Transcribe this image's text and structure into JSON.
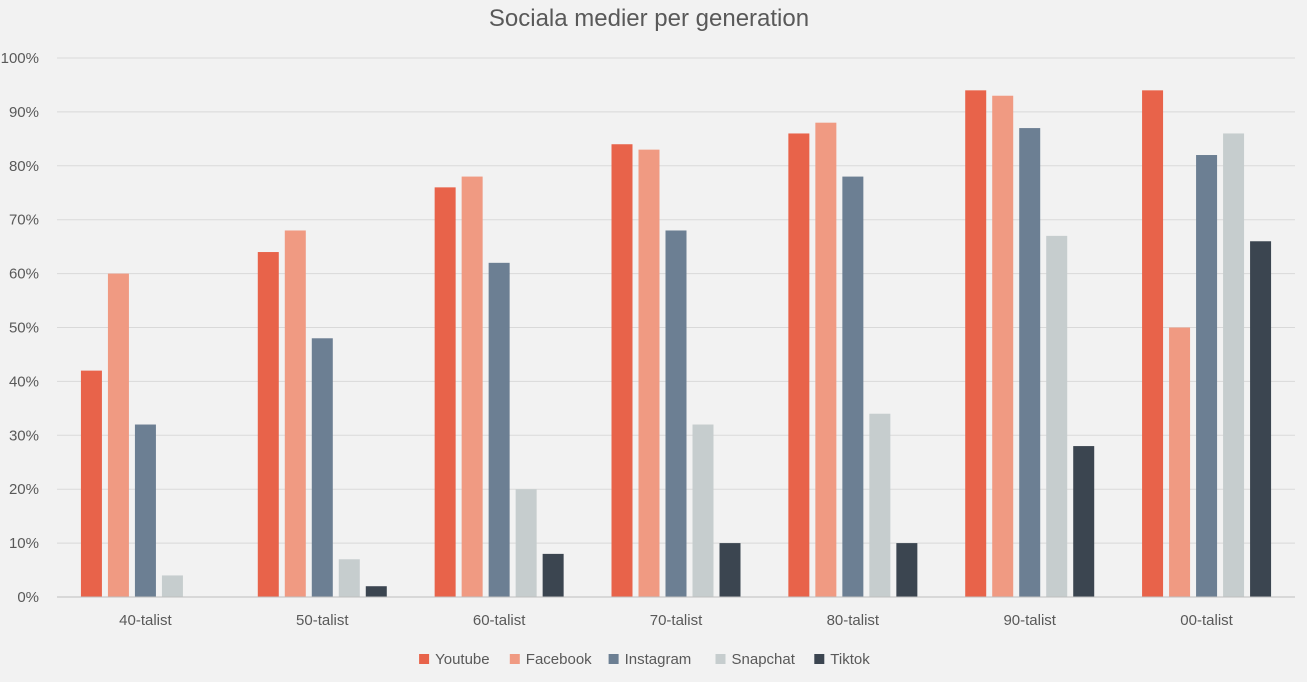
{
  "chart_data": {
    "type": "bar",
    "title": "Sociala medier per generation",
    "xlabel": "",
    "ylabel": "",
    "categories": [
      "40-talist",
      "50-talist",
      "60-talist",
      "70-talist",
      "80-talist",
      "90-talist",
      "00-talist"
    ],
    "yticks": [
      "0%",
      "10%",
      "20%",
      "30%",
      "40%",
      "50%",
      "60%",
      "70%",
      "80%",
      "90%",
      "100%"
    ],
    "ylim": [
      0,
      100
    ],
    "grid": true,
    "legend_position": "bottom",
    "series": [
      {
        "name": "Youtube",
        "color": "#e8634a",
        "values": [
          42,
          64,
          76,
          84,
          86,
          94,
          94
        ]
      },
      {
        "name": "Facebook",
        "color": "#f09a82",
        "values": [
          60,
          68,
          78,
          83,
          88,
          93,
          50
        ]
      },
      {
        "name": "Instagram",
        "color": "#6c7f93",
        "values": [
          32,
          48,
          62,
          68,
          78,
          87,
          82
        ]
      },
      {
        "name": "Snapchat",
        "color": "#c6cdce",
        "values": [
          4,
          7,
          20,
          32,
          34,
          67,
          86
        ]
      },
      {
        "name": "Tiktok",
        "color": "#3b4550",
        "values": [
          0,
          2,
          8,
          10,
          10,
          28,
          66
        ]
      }
    ]
  }
}
